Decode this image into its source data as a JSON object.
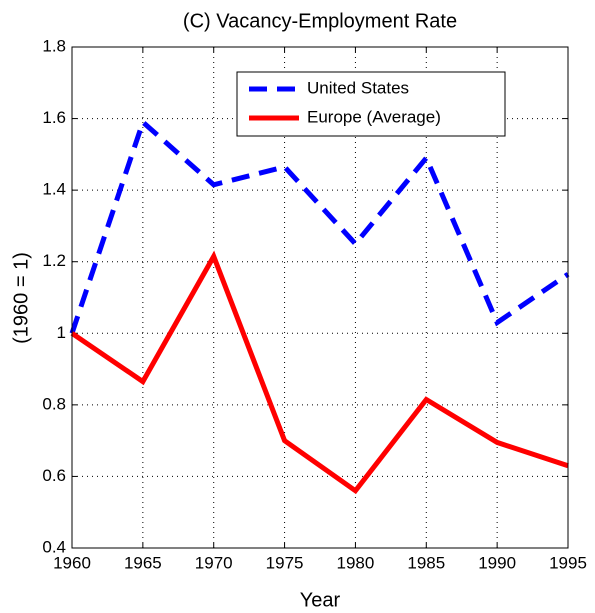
{
  "chart_data": {
    "type": "line",
    "title": "(C)   Vacancy-Employment Rate",
    "x_label": "Year",
    "y_label": "(1960 = 1)",
    "x": [
      1960,
      1965,
      1970,
      1975,
      1980,
      1985,
      1990,
      1995
    ],
    "series": [
      {
        "name": "United States",
        "color": "#0000ff",
        "linestyle": "dashed",
        "values": [
          1.0,
          1.59,
          1.415,
          1.465,
          1.25,
          1.49,
          1.03,
          1.165
        ]
      },
      {
        "name": "Europe (Average)",
        "color": "#ff0000",
        "linestyle": "solid",
        "values": [
          1.0,
          0.865,
          1.215,
          0.7,
          0.56,
          0.815,
          0.695,
          0.63
        ]
      }
    ],
    "xlim": [
      1960,
      1995
    ],
    "xticks": [
      1960,
      1965,
      1970,
      1975,
      1980,
      1985,
      1990,
      1995
    ],
    "ylim": [
      0.4,
      1.8
    ],
    "yticks": [
      0.4,
      0.6,
      0.8,
      1,
      1.2,
      1.4,
      1.6,
      1.8
    ],
    "grid": true,
    "legend": "upper right"
  }
}
